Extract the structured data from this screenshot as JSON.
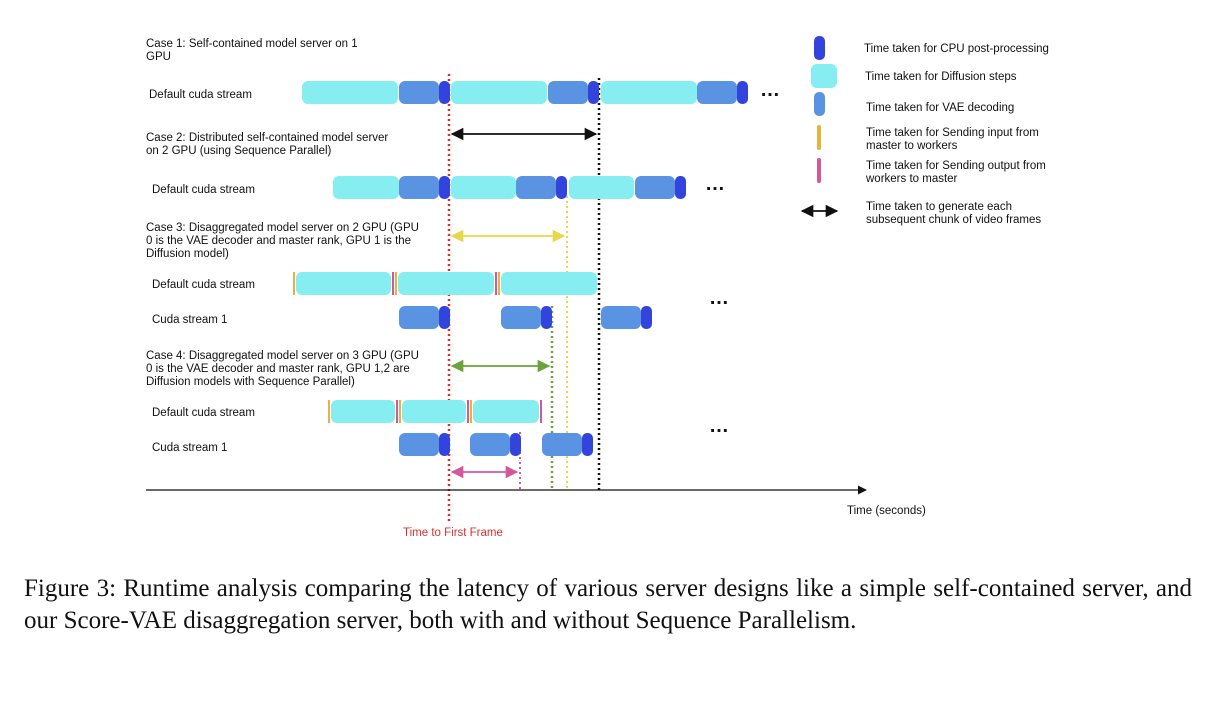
{
  "colors": {
    "cpu_post": "#3344dd",
    "diffusion": "#86eef0",
    "vae": "#5b93e3",
    "send_input": "#e8b23c",
    "send_output": "#d3589b",
    "ttff_line": "#d9302c",
    "case1_line": "#111111",
    "case2_line": "#e6d84a",
    "case3_line": "#69a33a",
    "case4_line": "#d3589b"
  },
  "cases": [
    {
      "title_lines": [
        "Case 1: Self-contained model server on 1",
        "GPU"
      ]
    },
    {
      "title_lines": [
        "Case 2: Distributed self-contained model server",
        "on 2 GPU (using Sequence Parallel)"
      ]
    },
    {
      "title_lines": [
        "Case 3: Disaggregated model server on 2 GPU (GPU",
        "0 is the VAE decoder and master rank, GPU 1 is the",
        "Diffusion model)"
      ]
    },
    {
      "title_lines": [
        "Case 4: Disaggregated model server on 3 GPU (GPU",
        "0 is the VAE decoder and master rank, GPU 1,2 are",
        "Diffusion models with Sequence Parallel)"
      ]
    }
  ],
  "stream_labels": {
    "default": "Default cuda stream",
    "stream1": "Cuda stream 1"
  },
  "ellipsis": "…",
  "legend": [
    {
      "icon": "cpu-post",
      "lines": [
        "Time taken for CPU post-processing"
      ]
    },
    {
      "icon": "diffusion",
      "lines": [
        "Time taken for Diffusion steps"
      ]
    },
    {
      "icon": "vae",
      "lines": [
        "Time taken for VAE decoding"
      ]
    },
    {
      "icon": "send-input",
      "lines": [
        "Time taken for Sending input from",
        "master to workers"
      ]
    },
    {
      "icon": "send-output",
      "lines": [
        "Time taken for Sending output from",
        "workers to master"
      ]
    },
    {
      "icon": "chunk-arrow",
      "lines": [
        "Time taken to generate each",
        "subsequent chunk of video frames"
      ]
    }
  ],
  "axis": {
    "xlabel": "Time (seconds)",
    "ttff_label": "Time to First Frame"
  },
  "caption": "Figure 3: Runtime analysis comparing the latency of various server designs like a simple self-contained server, and our Score-VAE disaggregation server, both with and without Sequence Parallelism."
}
